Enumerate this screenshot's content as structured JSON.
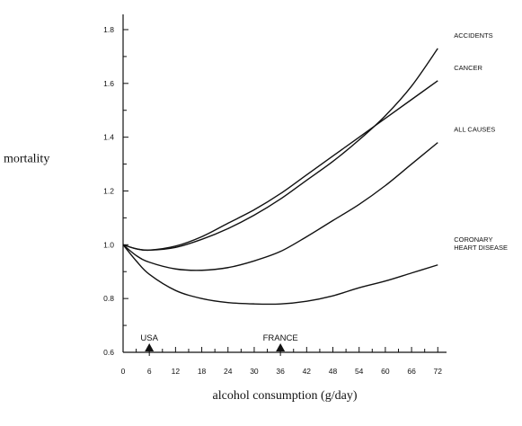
{
  "chart_data": {
    "type": "line",
    "title": "",
    "xlabel": "alcohol consumption (g/day)",
    "ylabel": "mortality",
    "xlim": [
      0,
      74
    ],
    "ylim": [
      0.6,
      1.85
    ],
    "x_ticks": [
      0,
      6,
      12,
      18,
      24,
      30,
      36,
      42,
      48,
      54,
      60,
      66,
      72
    ],
    "y_ticks": [
      0.6,
      0.8,
      1.0,
      1.2,
      1.4,
      1.6,
      1.8
    ],
    "y_tick_labels": [
      "0.6",
      "0.8",
      "1.0",
      "1.2",
      "1.4",
      "1.6",
      "1.8"
    ],
    "grid": false,
    "legend": "none",
    "series": [
      {
        "name": "ACCIDENTS",
        "x": [
          0,
          3,
          6,
          12,
          18,
          24,
          30,
          36,
          42,
          48,
          54,
          60,
          66,
          72
        ],
        "values": [
          1.0,
          0.985,
          0.98,
          0.99,
          1.02,
          1.06,
          1.11,
          1.17,
          1.24,
          1.31,
          1.39,
          1.48,
          1.59,
          1.73
        ]
      },
      {
        "name": "CANCER",
        "x": [
          0,
          3,
          6,
          12,
          18,
          24,
          30,
          36,
          42,
          48,
          54,
          60,
          66,
          72
        ],
        "values": [
          1.0,
          0.985,
          0.98,
          0.995,
          1.03,
          1.08,
          1.13,
          1.19,
          1.26,
          1.33,
          1.4,
          1.47,
          1.54,
          1.61
        ]
      },
      {
        "name": "ALL CAUSES",
        "x": [
          0,
          3,
          6,
          12,
          18,
          24,
          30,
          36,
          42,
          48,
          54,
          60,
          66,
          72
        ],
        "values": [
          1.0,
          0.96,
          0.935,
          0.91,
          0.905,
          0.915,
          0.94,
          0.975,
          1.03,
          1.09,
          1.15,
          1.22,
          1.3,
          1.38
        ]
      },
      {
        "name": "CORONARY HEART DISEASE",
        "label_lines": [
          "CORONARY",
          "HEART DISEASE"
        ],
        "x": [
          0,
          3,
          6,
          12,
          18,
          24,
          30,
          36,
          42,
          48,
          54,
          60,
          66,
          72
        ],
        "values": [
          1.0,
          0.94,
          0.89,
          0.83,
          0.8,
          0.785,
          0.78,
          0.78,
          0.79,
          0.81,
          0.84,
          0.865,
          0.895,
          0.925
        ]
      }
    ],
    "annotations": [
      {
        "label": "USA",
        "x": 6
      },
      {
        "label": "FRANCE",
        "x": 36
      }
    ]
  }
}
